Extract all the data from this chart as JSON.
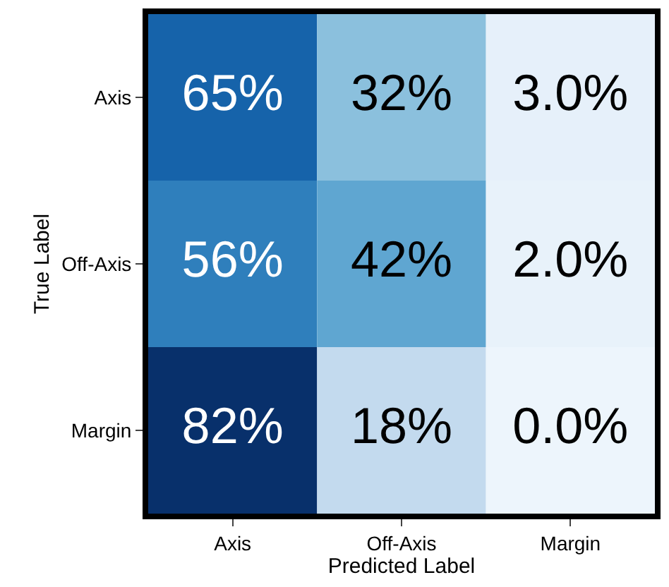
{
  "chart_data": {
    "type": "heatmap",
    "xlabel": "Predicted Label",
    "ylabel": "True Label",
    "categories": [
      "Axis",
      "Off-Axis",
      "Margin"
    ],
    "y_categories": [
      "Axis",
      "Off-Axis",
      "Margin"
    ],
    "cells": [
      [
        65,
        32,
        3.0
      ],
      [
        56,
        42,
        2.0
      ],
      [
        82,
        18,
        0.0
      ]
    ],
    "cell_labels": [
      [
        "65%",
        "32%",
        "3.0%"
      ],
      [
        "56%",
        "42%",
        "2.0%"
      ],
      [
        "82%",
        "18%",
        "0.0%"
      ]
    ]
  }
}
